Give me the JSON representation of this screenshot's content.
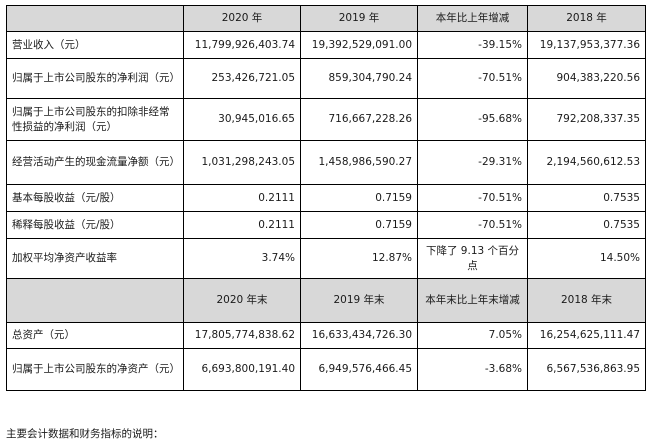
{
  "header_top": {
    "col1": "2020 年",
    "col2": "2019 年",
    "col3": "本年比上年增减",
    "col4": "2018 年"
  },
  "rows_top": [
    {
      "label": "营业收入（元）",
      "v2020": "11,799,926,403.74",
      "v2019": "19,392,529,091.00",
      "change": "-39.15%",
      "v2018": "19,137,953,377.36"
    },
    {
      "label": "归属于上市公司股东的净利润（元）",
      "v2020": "253,426,721.05",
      "v2019": "859,304,790.24",
      "change": "-70.51%",
      "v2018": "904,383,220.56"
    },
    {
      "label": "归属于上市公司股东的扣除非经常性损益的净利润（元）",
      "v2020": "30,945,016.65",
      "v2019": "716,667,228.26",
      "change": "-95.68%",
      "v2018": "792,208,337.35"
    },
    {
      "label": "经营活动产生的现金流量净额（元）",
      "v2020": "1,031,298,243.05",
      "v2019": "1,458,986,590.27",
      "change": "-29.31%",
      "v2018": "2,194,560,612.53"
    },
    {
      "label": "基本每股收益（元/股）",
      "v2020": "0.2111",
      "v2019": "0.7159",
      "change": "-70.51%",
      "v2018": "0.7535"
    },
    {
      "label": "稀释每股收益（元/股）",
      "v2020": "0.2111",
      "v2019": "0.7159",
      "change": "-70.51%",
      "v2018": "0.7535"
    },
    {
      "label": "加权平均净资产收益率",
      "v2020": "3.74%",
      "v2019": "12.87%",
      "change": "下降了 9.13 个百分点",
      "v2018": "14.50%"
    }
  ],
  "header_bottom": {
    "col1": "2020 年末",
    "col2": "2019 年末",
    "col3": "本年末比上年末增减",
    "col4": "2018 年末"
  },
  "rows_bottom": [
    {
      "label": "总资产（元）",
      "v2020": "17,805,774,838.62",
      "v2019": "16,633,434,726.30",
      "change": "7.05%",
      "v2018": "16,254,625,111.47"
    },
    {
      "label": "归属于上市公司股东的净资产（元）",
      "v2020": "6,693,800,191.40",
      "v2019": "6,949,576,466.45",
      "change": "-3.68%",
      "v2018": "6,567,536,863.95"
    }
  ],
  "footnote": "主要会计数据和财务指标的说明："
}
